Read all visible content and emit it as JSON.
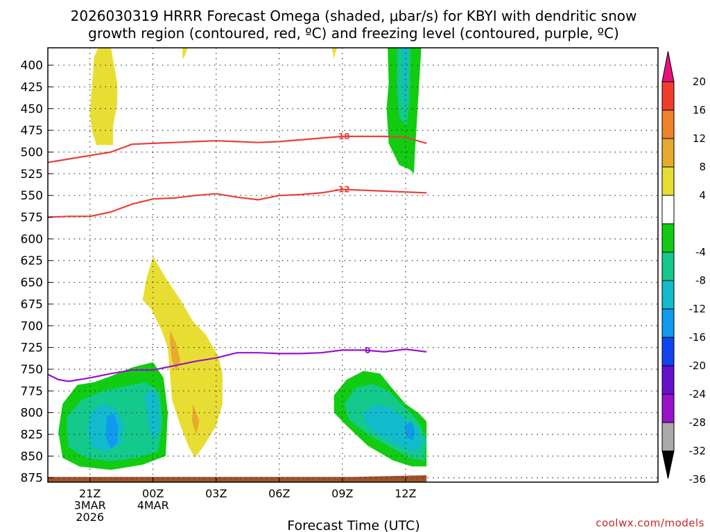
{
  "chart_data": {
    "type": "heatmap",
    "title_lines": [
      "2026030319 HRRR Forecast Omega (shaded, μbar/s) for KBYI with dendritic snow",
      "growth region (contoured, red, ºC) and freezing level (contoured, purple, ºC)"
    ],
    "xlabel": "Forecast Time (UTC)",
    "ylabel": "",
    "x_unit": "forecast hours after 2026-03-03 19Z",
    "xlim": [
      0,
      29
    ],
    "x_ticks": [
      {
        "x": 2,
        "lines": [
          "21Z",
          "3MAR",
          "2026"
        ]
      },
      {
        "x": 5,
        "lines": [
          "00Z",
          "4MAR"
        ]
      },
      {
        "x": 8,
        "lines": [
          "03Z"
        ]
      },
      {
        "x": 11,
        "lines": [
          "06Z"
        ]
      },
      {
        "x": 14,
        "lines": [
          "09Z"
        ]
      },
      {
        "x": 17,
        "lines": [
          "12Z"
        ]
      }
    ],
    "y_unit": "pressure (mb)",
    "ylim": [
      880,
      380
    ],
    "y_ticks": [
      400,
      425,
      450,
      475,
      500,
      525,
      550,
      575,
      600,
      625,
      650,
      675,
      700,
      725,
      750,
      775,
      800,
      825,
      850,
      875
    ],
    "grid": true,
    "colorbar": {
      "label_values": [
        20,
        16,
        12,
        8,
        4,
        -4,
        -8,
        -12,
        -16,
        -20,
        -24,
        -28,
        -32,
        -36
      ],
      "levels": [
        {
          "min": 16,
          "max": 20,
          "color": "#f23c2e"
        },
        {
          "min": 12,
          "max": 16,
          "color": "#f0822a"
        },
        {
          "min": 8,
          "max": 12,
          "color": "#e6ab2e"
        },
        {
          "min": 4,
          "max": 8,
          "color": "#e8de33"
        },
        {
          "min": -4,
          "max": 4,
          "color": "#ffffff"
        },
        {
          "min": -8,
          "max": -4,
          "color": "#11cc11"
        },
        {
          "min": -12,
          "max": -8,
          "color": "#13c98c"
        },
        {
          "min": -16,
          "max": -12,
          "color": "#11bbcc"
        },
        {
          "min": -20,
          "max": -16,
          "color": "#1199ee"
        },
        {
          "min": -24,
          "max": -20,
          "color": "#1144ee"
        },
        {
          "min": -28,
          "max": -24,
          "color": "#6611cc"
        },
        {
          "min": -32,
          "max": -28,
          "color": "#9911cc"
        },
        {
          "min": -36,
          "max": -32,
          "color": "#aaaaaa"
        }
      ],
      "top_arrow_color": "#e8117a",
      "bottom_arrow_color": "#000000"
    },
    "shaded_regions": [
      {
        "level": "4 to 8",
        "color": "#e8de33",
        "points": [
          [
            2.4,
            380
          ],
          [
            3.0,
            380
          ],
          [
            3.3,
            420
          ],
          [
            3.3,
            445
          ],
          [
            3.1,
            470
          ],
          [
            3.1,
            492
          ],
          [
            2.3,
            492
          ],
          [
            2.1,
            475
          ],
          [
            2.0,
            455
          ],
          [
            2.2,
            390
          ]
        ]
      },
      {
        "level": "4 to 8",
        "color": "#e8de33",
        "points": [
          [
            6.4,
            380
          ],
          [
            6.65,
            380
          ],
          [
            6.5,
            390
          ],
          [
            6.4,
            393
          ]
        ]
      },
      {
        "level": "4 to 8",
        "color": "#e8de33",
        "points": [
          [
            13.5,
            380
          ],
          [
            13.75,
            380
          ],
          [
            13.65,
            387
          ],
          [
            13.6,
            393
          ]
        ]
      },
      {
        "level": "4 to 8",
        "color": "#e8de33",
        "points": [
          [
            5.0,
            620
          ],
          [
            5.6,
            645
          ],
          [
            6.3,
            670
          ],
          [
            6.9,
            695
          ],
          [
            7.5,
            710
          ],
          [
            8.1,
            735
          ],
          [
            8.3,
            755
          ],
          [
            8.3,
            790
          ],
          [
            8.0,
            815
          ],
          [
            7.5,
            835
          ],
          [
            7.0,
            852
          ],
          [
            6.7,
            840
          ],
          [
            6.3,
            815
          ],
          [
            5.9,
            785
          ],
          [
            5.8,
            755
          ],
          [
            5.7,
            725
          ],
          [
            5.4,
            705
          ],
          [
            4.9,
            680
          ],
          [
            4.5,
            670
          ],
          [
            4.7,
            645
          ]
        ]
      },
      {
        "level": "8 to 12",
        "color": "#e6ab2e",
        "points": [
          [
            5.8,
            705
          ],
          [
            6.1,
            720
          ],
          [
            6.3,
            740
          ],
          [
            6.1,
            752
          ],
          [
            5.9,
            740
          ],
          [
            5.8,
            720
          ]
        ]
      },
      {
        "level": "8 to 12",
        "color": "#e6ab2e",
        "points": [
          [
            6.9,
            790
          ],
          [
            7.2,
            810
          ],
          [
            7.05,
            825
          ],
          [
            6.85,
            810
          ]
        ]
      },
      {
        "level": "-8 to -4",
        "color": "#11cc11",
        "points": [
          [
            16.15,
            380
          ],
          [
            17.75,
            380
          ],
          [
            17.55,
            460
          ],
          [
            17.45,
            500
          ],
          [
            17.4,
            525
          ],
          [
            17.2,
            520
          ],
          [
            16.7,
            515
          ],
          [
            16.2,
            490
          ],
          [
            16.1,
            450
          ],
          [
            16.2,
            420
          ]
        ]
      },
      {
        "level": "-12 to -8",
        "color": "#13c98c",
        "points": [
          [
            16.6,
            380
          ],
          [
            17.25,
            380
          ],
          [
            17.2,
            440
          ],
          [
            17.05,
            470
          ],
          [
            16.7,
            460
          ],
          [
            16.6,
            430
          ]
        ]
      },
      {
        "level": "-16 to -12",
        "color": "#11bbcc",
        "points": [
          [
            16.85,
            380
          ],
          [
            17.1,
            380
          ],
          [
            17.05,
            420
          ],
          [
            16.95,
            455
          ],
          [
            16.85,
            430
          ]
        ]
      },
      {
        "level": "-8 to -4",
        "color": "#11cc11",
        "points": [
          [
            0.7,
            790
          ],
          [
            1.4,
            768
          ],
          [
            2.2,
            765
          ],
          [
            3.0,
            758
          ],
          [
            4.0,
            748
          ],
          [
            5.0,
            742
          ],
          [
            5.5,
            760
          ],
          [
            5.7,
            800
          ],
          [
            5.6,
            850
          ],
          [
            4.5,
            860
          ],
          [
            3.0,
            866
          ],
          [
            1.5,
            862
          ],
          [
            0.7,
            852
          ],
          [
            0.5,
            822
          ]
        ]
      },
      {
        "level": "-12 to -8",
        "color": "#13c98c",
        "points": [
          [
            0.9,
            805
          ],
          [
            1.6,
            785
          ],
          [
            2.6,
            775
          ],
          [
            3.6,
            770
          ],
          [
            4.6,
            765
          ],
          [
            5.3,
            775
          ],
          [
            5.45,
            810
          ],
          [
            5.25,
            845
          ],
          [
            4.2,
            852
          ],
          [
            3.0,
            856
          ],
          [
            1.8,
            852
          ],
          [
            1.0,
            840
          ],
          [
            0.9,
            820
          ]
        ]
      },
      {
        "level": "-16 to -12",
        "color": "#11bbcc",
        "points": [
          [
            2.0,
            800
          ],
          [
            2.6,
            790
          ],
          [
            3.2,
            795
          ],
          [
            3.6,
            812
          ],
          [
            3.5,
            835
          ],
          [
            2.8,
            845
          ],
          [
            2.1,
            840
          ],
          [
            1.9,
            820
          ]
        ]
      },
      {
        "level": "-16 to -12",
        "color": "#11bbcc",
        "points": [
          [
            4.6,
            780
          ],
          [
            5.0,
            772
          ],
          [
            5.3,
            790
          ],
          [
            5.3,
            820
          ],
          [
            5.0,
            832
          ],
          [
            4.8,
            815
          ]
        ]
      },
      {
        "level": "-20 to -16",
        "color": "#1199ee",
        "points": [
          [
            2.8,
            805
          ],
          [
            3.1,
            800
          ],
          [
            3.35,
            815
          ],
          [
            3.3,
            835
          ],
          [
            3.0,
            842
          ],
          [
            2.75,
            828
          ]
        ]
      },
      {
        "level": "-8 to -4",
        "color": "#11cc11",
        "points": [
          [
            13.6,
            780
          ],
          [
            14.2,
            762
          ],
          [
            15.0,
            752
          ],
          [
            15.8,
            755
          ],
          [
            16.3,
            770
          ],
          [
            17.0,
            790
          ],
          [
            17.6,
            800
          ],
          [
            18.0,
            810
          ],
          [
            18.0,
            862
          ],
          [
            17.3,
            862
          ],
          [
            16.4,
            855
          ],
          [
            15.2,
            838
          ],
          [
            14.2,
            815
          ],
          [
            13.6,
            800
          ]
        ]
      },
      {
        "level": "-12 to -8",
        "color": "#13c98c",
        "points": [
          [
            14.1,
            790
          ],
          [
            14.6,
            772
          ],
          [
            15.4,
            767
          ],
          [
            16.2,
            775
          ],
          [
            17.0,
            795
          ],
          [
            17.6,
            810
          ],
          [
            18.0,
            830
          ],
          [
            17.9,
            855
          ],
          [
            17.2,
            852
          ],
          [
            16.3,
            840
          ],
          [
            15.2,
            825
          ],
          [
            14.3,
            808
          ]
        ]
      },
      {
        "level": "-16 to -12",
        "color": "#11bbcc",
        "points": [
          [
            15.0,
            800
          ],
          [
            15.6,
            790
          ],
          [
            16.3,
            795
          ],
          [
            17.0,
            808
          ],
          [
            17.6,
            818
          ],
          [
            17.8,
            835
          ],
          [
            17.5,
            845
          ],
          [
            16.6,
            838
          ],
          [
            15.7,
            825
          ],
          [
            15.1,
            812
          ]
        ]
      },
      {
        "level": "-20 to -16",
        "color": "#1199ee",
        "points": [
          [
            16.95,
            815
          ],
          [
            17.3,
            810
          ],
          [
            17.45,
            822
          ],
          [
            17.35,
            832
          ],
          [
            17.05,
            828
          ]
        ]
      }
    ],
    "series": [
      {
        "name": "",
        "label": "-18",
        "color": "#e8403a",
        "label_x": 14.0,
        "x": [
          0,
          1,
          2,
          3,
          4,
          5,
          6,
          7,
          8,
          9,
          10,
          11,
          12,
          13,
          14,
          15,
          16,
          17,
          18
        ],
        "y": [
          512,
          508,
          504,
          500,
          491,
          490,
          489,
          488,
          487,
          488,
          489,
          488,
          486,
          484,
          482,
          482,
          482,
          483,
          490
        ]
      },
      {
        "name": "",
        "label": "-12",
        "color": "#e8403a",
        "label_x": 14.0,
        "x": [
          0,
          1,
          2,
          3,
          4,
          5,
          6,
          7,
          8,
          9,
          10,
          11,
          12,
          13,
          14,
          15,
          16,
          17,
          18
        ],
        "y": [
          575,
          574,
          574,
          569,
          560,
          554,
          553,
          550,
          548,
          552,
          555,
          550,
          549,
          547,
          543,
          544,
          545,
          546,
          547
        ]
      },
      {
        "name": "",
        "label": "0",
        "color": "#9b10d0",
        "label_x": 15.2,
        "x": [
          0,
          0.5,
          1,
          2,
          3,
          4,
          5,
          6,
          7,
          8,
          9,
          10,
          11,
          12,
          13,
          14,
          15,
          16,
          17,
          18
        ],
        "y": [
          756,
          762,
          764,
          760,
          755,
          751,
          751,
          746,
          741,
          737,
          731,
          731,
          732,
          732,
          731,
          728,
          728,
          730,
          727,
          730
        ]
      }
    ],
    "terrain": {
      "color": "#a0522d",
      "points": [
        [
          0,
          874
        ],
        [
          14.5,
          874
        ],
        [
          18,
          872
        ],
        [
          18,
          880
        ],
        [
          0,
          880
        ]
      ]
    }
  },
  "credit": "coolwx.com/models"
}
